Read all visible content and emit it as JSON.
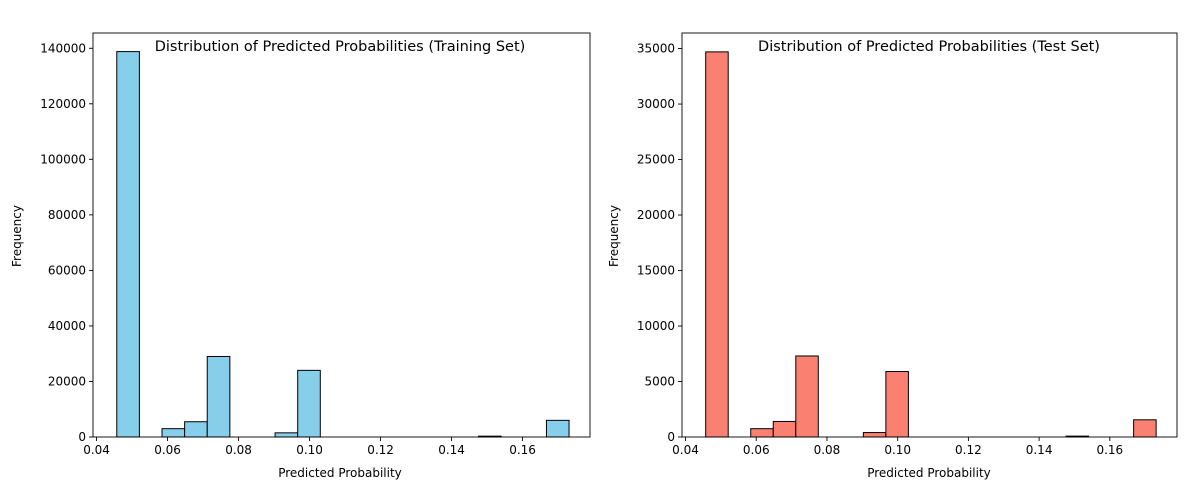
{
  "chart_data": [
    {
      "type": "bar",
      "title": "Distribution of Predicted Probabilities (Training Set)",
      "xlabel": "Predicted Probability",
      "ylabel": "Frequency",
      "bar_color": "#87ceeb",
      "edge_color": "#000000",
      "xlim": [
        0.039,
        0.179
      ],
      "ylim": [
        0,
        145500
      ],
      "xticks": [
        0.04,
        0.06,
        0.08,
        0.1,
        0.12,
        0.14,
        0.16
      ],
      "xtick_labels": [
        "0.04",
        "0.06",
        "0.08",
        "0.10",
        "0.12",
        "0.14",
        "0.16"
      ],
      "yticks": [
        0,
        20000,
        40000,
        60000,
        80000,
        100000,
        120000,
        140000
      ],
      "ytick_labels": [
        "0",
        "20000",
        "40000",
        "60000",
        "80000",
        "100000",
        "120000",
        "140000"
      ],
      "bin_start": 0.0457,
      "bin_width": 0.00637,
      "values": [
        138800,
        0,
        3000,
        5500,
        29000,
        0,
        0,
        1500,
        24000,
        0,
        0,
        0,
        0,
        0,
        0,
        0,
        300,
        0,
        0,
        6000
      ]
    },
    {
      "type": "bar",
      "title": "Distribution of Predicted Probabilities (Test Set)",
      "xlabel": "Predicted Probability",
      "ylabel": "Frequency",
      "bar_color": "#fa8072",
      "edge_color": "#000000",
      "xlim": [
        0.039,
        0.179
      ],
      "ylim": [
        0,
        36400
      ],
      "xticks": [
        0.04,
        0.06,
        0.08,
        0.1,
        0.12,
        0.14,
        0.16
      ],
      "xtick_labels": [
        "0.04",
        "0.06",
        "0.08",
        "0.10",
        "0.12",
        "0.14",
        "0.16"
      ],
      "yticks": [
        0,
        5000,
        10000,
        15000,
        20000,
        25000,
        30000,
        35000
      ],
      "ytick_labels": [
        "0",
        "5000",
        "10000",
        "15000",
        "20000",
        "25000",
        "30000",
        "35000"
      ],
      "bin_start": 0.0457,
      "bin_width": 0.00637,
      "values": [
        34700,
        0,
        750,
        1400,
        7300,
        0,
        0,
        400,
        5900,
        0,
        0,
        0,
        0,
        0,
        0,
        0,
        80,
        0,
        0,
        1550
      ]
    }
  ]
}
